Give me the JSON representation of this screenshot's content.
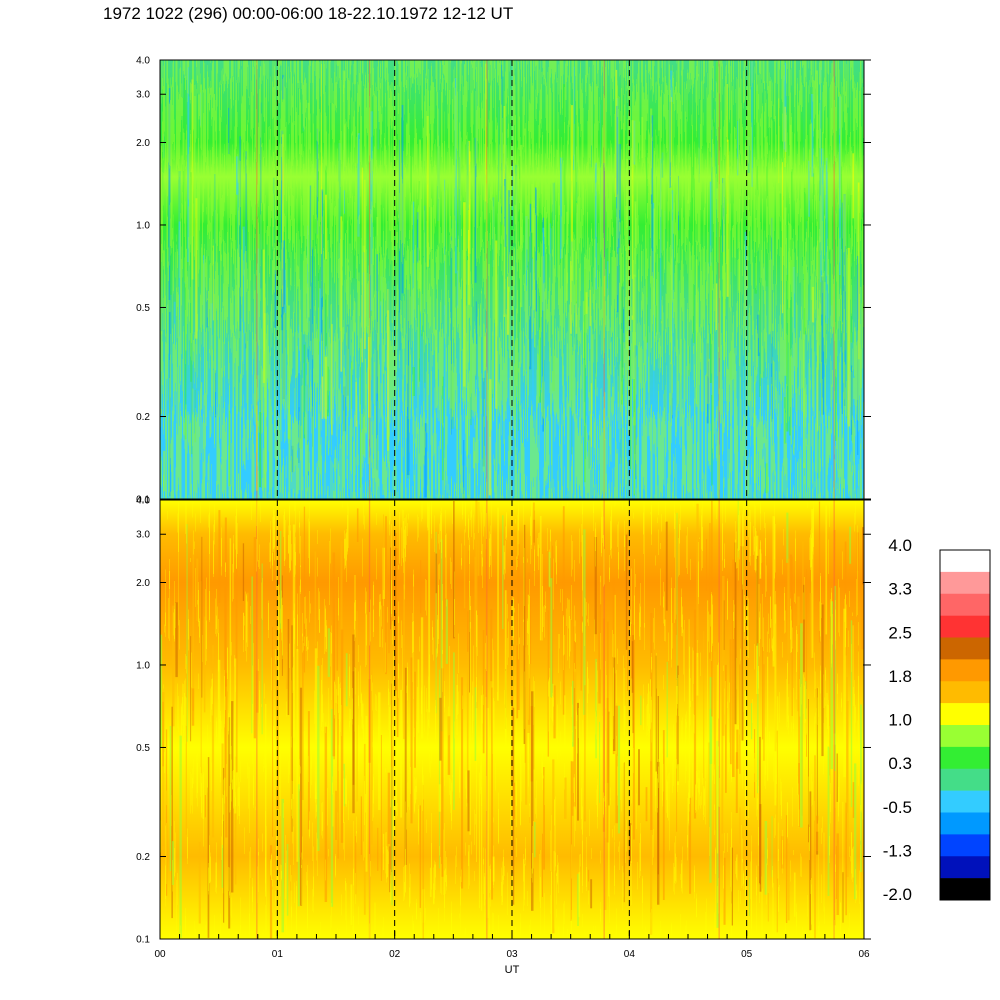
{
  "title": "1972 1022 (296) 00:00-06:00 18-22.10.1972  12-12 UT",
  "chart_data": {
    "type": "heatmap",
    "xlabel": "UT",
    "x_ticks": [
      "00",
      "01",
      "02",
      "03",
      "04",
      "05",
      "06"
    ],
    "xlim": [
      0,
      6
    ],
    "y_scale": "log",
    "panels": [
      {
        "id": "upper",
        "ylim": [
          0.1,
          4.0
        ],
        "y_ticks": [
          "0.1",
          "0.2",
          "0.5",
          "1.0",
          "2.0",
          "3.0",
          "4.0"
        ],
        "dominant_levels": [
          "0.3",
          "-0.5",
          "1.0"
        ],
        "profile": [
          {
            "y": 0.1,
            "level": -0.5
          },
          {
            "y": 0.2,
            "level": -0.3
          },
          {
            "y": 0.5,
            "level": 0.0
          },
          {
            "y": 1.0,
            "level": 0.5
          },
          {
            "y": 1.5,
            "level": 0.9
          },
          {
            "y": 2.0,
            "level": 0.4
          },
          {
            "y": 4.0,
            "level": 0.0
          }
        ]
      },
      {
        "id": "lower",
        "ylim": [
          0.1,
          4.0
        ],
        "y_ticks": [
          "0.1",
          "0.2",
          "0.5",
          "1.0",
          "2.0",
          "3.0",
          "4.0"
        ],
        "dominant_levels": [
          "1.8",
          "1.0",
          "2.5"
        ],
        "profile": [
          {
            "y": 0.1,
            "level": 1.2
          },
          {
            "y": 0.2,
            "level": 1.6
          },
          {
            "y": 0.5,
            "level": 1.3
          },
          {
            "y": 1.0,
            "level": 1.7
          },
          {
            "y": 2.0,
            "level": 1.8
          },
          {
            "y": 3.0,
            "level": 1.6
          },
          {
            "y": 4.0,
            "level": 1.0
          }
        ]
      }
    ],
    "hour_markers": [
      1,
      2,
      3,
      4,
      5
    ],
    "colorbar": {
      "labels": [
        "4.0",
        "3.3",
        "2.5",
        "1.8",
        "1.0",
        "0.3",
        "-0.5",
        "-1.3",
        "-2.0"
      ],
      "colors": [
        "#ffffff",
        "#ff9999",
        "#ff6666",
        "#ff3333",
        "#cc6600",
        "#ff9900",
        "#ffbb00",
        "#ffff00",
        "#99ff33",
        "#33ee33",
        "#44dd88",
        "#33ccff",
        "#0099ff",
        "#0044ff",
        "#0011bb",
        "#000000"
      ]
    }
  }
}
